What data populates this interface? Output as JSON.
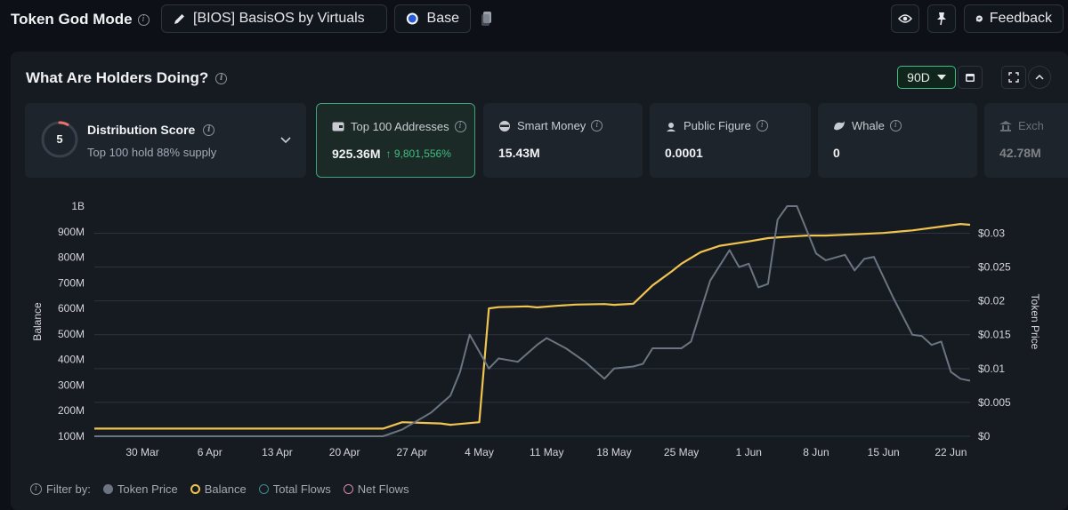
{
  "header": {
    "app_title": "Token God Mode",
    "token_label": "[BIOS] BasisOS by Virtuals",
    "chain_label": "Base",
    "feedback_label": "Feedback"
  },
  "panel": {
    "title": "What Are Holders Doing?",
    "range_label": "90D"
  },
  "distribution": {
    "score": "5",
    "title": "Distribution Score",
    "subtitle": "Top 100 hold 88% supply"
  },
  "cards": [
    {
      "label": "Top 100 Addresses",
      "value": "925.36M",
      "change": "9,801,556%",
      "icon": "wallet-icon"
    },
    {
      "label": "Smart Money",
      "value": "15.43M",
      "icon": "smart-money-icon"
    },
    {
      "label": "Public Figure",
      "value": "0.0001",
      "icon": "public-figure-icon"
    },
    {
      "label": "Whale",
      "value": "0",
      "icon": "whale-icon"
    },
    {
      "label": "Exch",
      "value": "42.78M",
      "icon": "exchange-icon"
    }
  ],
  "legend": {
    "filter_label": "Filter by:",
    "items": [
      {
        "label": "Token Price",
        "color": "#6b7480",
        "style": "filled"
      },
      {
        "label": "Balance",
        "color": "#f0c44e",
        "style": "ring"
      },
      {
        "label": "Total Flows",
        "color": "#3d8a8e",
        "style": "outline"
      },
      {
        "label": "Net Flows",
        "color": "#d88aa8",
        "style": "outline"
      }
    ]
  },
  "chart_data": {
    "type": "line",
    "xlabel": "",
    "ylabel": "Balance",
    "y2label": "Token Price",
    "ylim": [
      100000000,
      1000000000
    ],
    "y2lim": [
      0,
      0.034
    ],
    "x_ticks": [
      "30 Mar",
      "6 Apr",
      "13 Apr",
      "20 Apr",
      "27 Apr",
      "4 May",
      "11 May",
      "18 May",
      "25 May",
      "1 Jun",
      "8 Jun",
      "15 Jun",
      "22 Jun"
    ],
    "y_ticks": [
      "100M",
      "200M",
      "300M",
      "400M",
      "500M",
      "600M",
      "700M",
      "800M",
      "900M",
      "1B"
    ],
    "y2_ticks": [
      "$0",
      "$0.005",
      "$0.01",
      "$0.015",
      "$0.02",
      "$0.025",
      "$0.03"
    ],
    "x_start": "2025-03-25",
    "x_end": "2025-06-24",
    "grid": true,
    "series": [
      {
        "name": "Balance",
        "color": "#f0c44e",
        "axis": "left",
        "points": [
          [
            "2025-03-25",
            130000000
          ],
          [
            "2025-04-24",
            130000000
          ],
          [
            "2025-04-26",
            155000000
          ],
          [
            "2025-04-30",
            150000000
          ],
          [
            "2025-05-01",
            145000000
          ],
          [
            "2025-05-04",
            155000000
          ],
          [
            "2025-05-05",
            600000000
          ],
          [
            "2025-05-06",
            605000000
          ],
          [
            "2025-05-09",
            608000000
          ],
          [
            "2025-05-10",
            604000000
          ],
          [
            "2025-05-12",
            610000000
          ],
          [
            "2025-05-14",
            615000000
          ],
          [
            "2025-05-17",
            617000000
          ],
          [
            "2025-05-18",
            614000000
          ],
          [
            "2025-05-20",
            618000000
          ],
          [
            "2025-05-22",
            690000000
          ],
          [
            "2025-05-24",
            745000000
          ],
          [
            "2025-05-25",
            775000000
          ],
          [
            "2025-05-27",
            820000000
          ],
          [
            "2025-05-29",
            845000000
          ],
          [
            "2025-06-01",
            862000000
          ],
          [
            "2025-06-03",
            875000000
          ],
          [
            "2025-06-05",
            880000000
          ],
          [
            "2025-06-07",
            885000000
          ],
          [
            "2025-06-09",
            885000000
          ],
          [
            "2025-06-12",
            890000000
          ],
          [
            "2025-06-15",
            895000000
          ],
          [
            "2025-06-18",
            905000000
          ],
          [
            "2025-06-21",
            920000000
          ],
          [
            "2025-06-23",
            930000000
          ],
          [
            "2025-06-24",
            927000000
          ]
        ]
      },
      {
        "name": "Token Price",
        "color": "#6b7480",
        "axis": "right",
        "points": [
          [
            "2025-03-25",
            0.0
          ],
          [
            "2025-04-24",
            0.0
          ],
          [
            "2025-04-26",
            0.001
          ],
          [
            "2025-04-29",
            0.0035
          ],
          [
            "2025-05-01",
            0.006
          ],
          [
            "2025-05-02",
            0.0095
          ],
          [
            "2025-05-03",
            0.015
          ],
          [
            "2025-05-05",
            0.01
          ],
          [
            "2025-05-06",
            0.0115
          ],
          [
            "2025-05-08",
            0.011
          ],
          [
            "2025-05-10",
            0.0135
          ],
          [
            "2025-05-11",
            0.0145
          ],
          [
            "2025-05-13",
            0.013
          ],
          [
            "2025-05-15",
            0.011
          ],
          [
            "2025-05-17",
            0.0085
          ],
          [
            "2025-05-18",
            0.01
          ],
          [
            "2025-05-20",
            0.0103
          ],
          [
            "2025-05-21",
            0.0107
          ],
          [
            "2025-05-22",
            0.013
          ],
          [
            "2025-05-24",
            0.013
          ],
          [
            "2025-05-25",
            0.013
          ],
          [
            "2025-05-26",
            0.014
          ],
          [
            "2025-05-28",
            0.023
          ],
          [
            "2025-05-30",
            0.0275
          ],
          [
            "2025-05-31",
            0.025
          ],
          [
            "2025-06-01",
            0.0255
          ],
          [
            "2025-06-02",
            0.022
          ],
          [
            "2025-06-03",
            0.0225
          ],
          [
            "2025-06-04",
            0.032
          ],
          [
            "2025-06-05",
            0.034
          ],
          [
            "2025-06-06",
            0.034
          ],
          [
            "2025-06-08",
            0.027
          ],
          [
            "2025-06-09",
            0.026
          ],
          [
            "2025-06-11",
            0.0268
          ],
          [
            "2025-06-12",
            0.0245
          ],
          [
            "2025-06-13",
            0.0262
          ],
          [
            "2025-06-14",
            0.0265
          ],
          [
            "2025-06-16",
            0.0205
          ],
          [
            "2025-06-18",
            0.015
          ],
          [
            "2025-06-19",
            0.0148
          ],
          [
            "2025-06-20",
            0.0135
          ],
          [
            "2025-06-21",
            0.014
          ],
          [
            "2025-06-22",
            0.0095
          ],
          [
            "2025-06-23",
            0.0085
          ],
          [
            "2025-06-24",
            0.0082
          ]
        ]
      }
    ]
  }
}
